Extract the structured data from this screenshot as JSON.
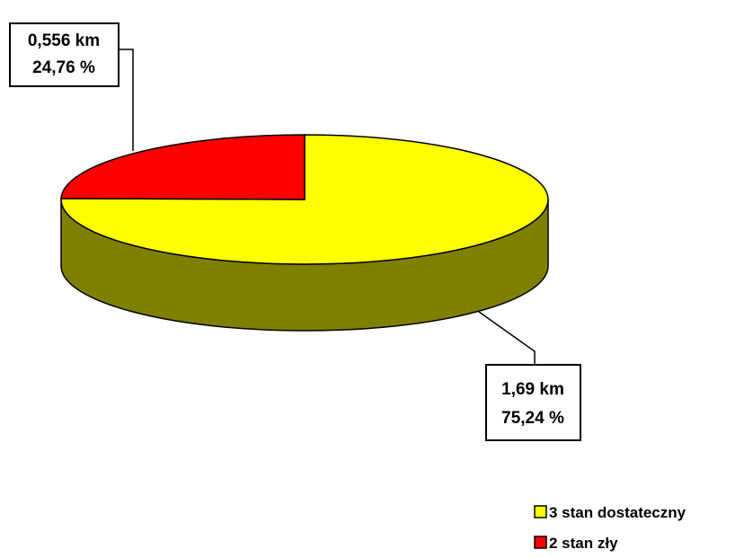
{
  "chart_data": {
    "type": "pie",
    "style": "3d",
    "slices": [
      {
        "label": "3 stan dostateczny",
        "value": 1.69,
        "value_label": "1,69 km",
        "percent": 75.24,
        "percent_label": "75,24 %",
        "color": "#FFFF00",
        "side_color": "#808000"
      },
      {
        "label": "2 stan zły",
        "value": 0.556,
        "value_label": "0,556 km",
        "percent": 24.76,
        "percent_label": "24,76 %",
        "color": "#FF0000",
        "side_color": "#800000"
      }
    ],
    "legend_position": "bottom-right"
  }
}
